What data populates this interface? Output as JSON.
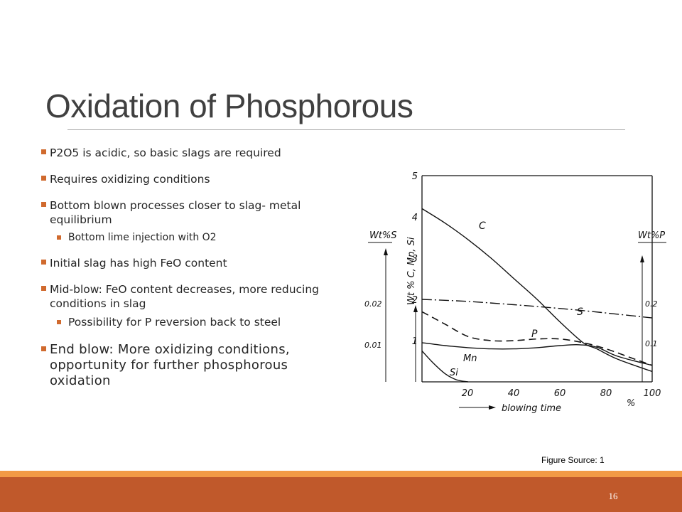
{
  "slide": {
    "title": "Oxidation of Phosphorous",
    "bullets": [
      "P2O5 is acidic, so basic slags are required",
      "Requires oxidizing conditions",
      "Bottom blown processes closer to slag- metal equilibrium",
      "Initial slag has high FeO content",
      "Mid-blow: FeO content decreases, more reducing conditions in slag",
      "End blow: More oxidizing conditions, opportunity for further phosphorous oxidation"
    ],
    "sub_bullets": [
      "Bottom lime injection with O2",
      "Possibility for P reversion back to steel"
    ],
    "figure_source": "Figure Source: 1",
    "slide_number": "16"
  },
  "colors": {
    "accent": "#c0592b",
    "accent_light": "#f29a45",
    "title": "#404040"
  },
  "chart_data": {
    "type": "line",
    "xlabel": "blowing time",
    "x_unit": "%",
    "x_ticks": [
      "20",
      "40",
      "60",
      "80",
      "100"
    ],
    "xlim": [
      0,
      100
    ],
    "y_left_label": "Wt % C, Mn, Si",
    "y_left_ticks": [
      "1",
      "2",
      "3",
      "4",
      "5"
    ],
    "ylim": [
      0,
      5
    ],
    "y_S_label": "Wt%S",
    "y_S_ticks": [
      "0.01",
      "0.02"
    ],
    "y_P_label": "Wt%P",
    "y_P_ticks": [
      "0.1",
      "0.2"
    ],
    "series": [
      {
        "name": "C",
        "axis": "left",
        "style": "solid",
        "x": [
          0,
          10,
          20,
          30,
          40,
          50,
          60,
          70,
          76,
          85,
          100
        ],
        "y": [
          4.2,
          3.85,
          3.45,
          3.0,
          2.5,
          2.0,
          1.45,
          0.95,
          0.8,
          0.55,
          0.25
        ]
      },
      {
        "name": "S",
        "axis": "right_S",
        "style": "dashdot",
        "x": [
          0,
          20,
          40,
          60,
          80,
          100
        ],
        "y": [
          0.02,
          0.0195,
          0.0187,
          0.0178,
          0.0167,
          0.0155
        ]
      },
      {
        "name": "P",
        "axis": "right_P",
        "style": "dashed",
        "x": [
          0,
          10,
          20,
          30,
          40,
          50,
          60,
          70,
          80,
          90,
          100
        ],
        "y": [
          0.17,
          0.14,
          0.11,
          0.1,
          0.1,
          0.104,
          0.104,
          0.095,
          0.08,
          0.06,
          0.04
        ]
      },
      {
        "name": "Mn",
        "axis": "left",
        "style": "solid",
        "x": [
          0,
          10,
          20,
          30,
          40,
          50,
          60,
          68,
          76,
          85,
          100
        ],
        "y": [
          0.95,
          0.88,
          0.83,
          0.8,
          0.8,
          0.83,
          0.88,
          0.9,
          0.84,
          0.62,
          0.4
        ]
      },
      {
        "name": "Si",
        "axis": "left",
        "style": "solid",
        "x": [
          0,
          5,
          10,
          15,
          20
        ],
        "y": [
          0.75,
          0.45,
          0.2,
          0.05,
          0.0
        ]
      }
    ]
  }
}
